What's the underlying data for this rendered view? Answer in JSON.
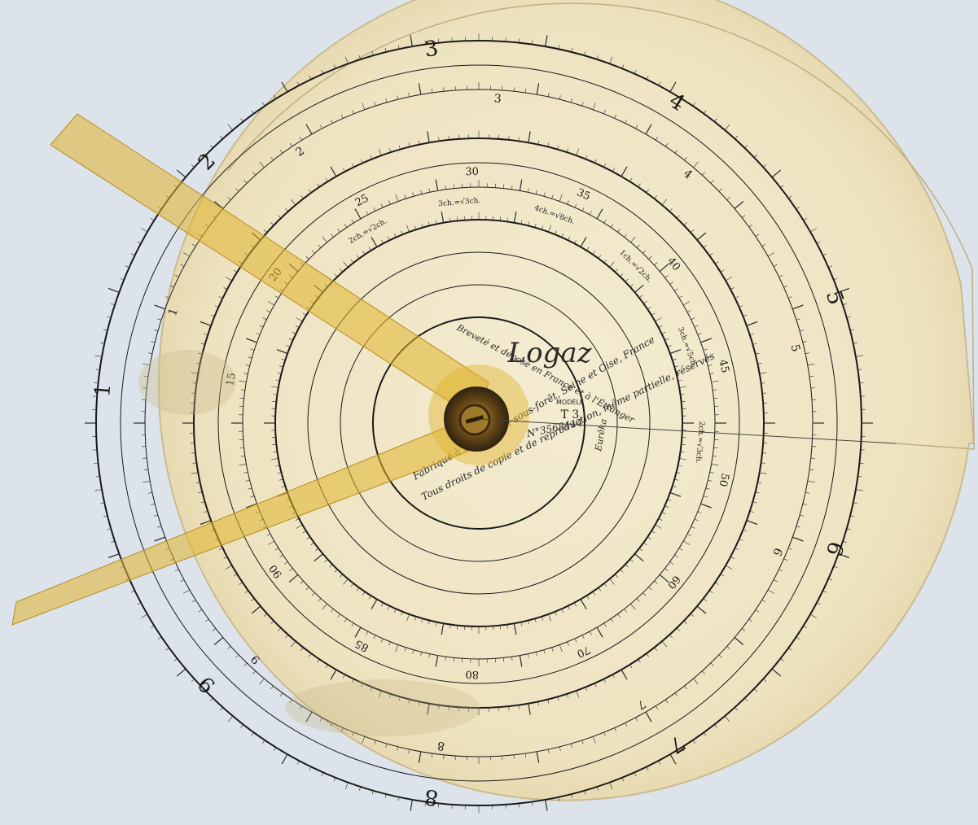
{
  "disc": {
    "brand": "Logaz",
    "model_label": "MODÈLE",
    "model": "T 3",
    "serial": "N°3568414",
    "patent_line_1": "Breveté et déposé en France et à l'Étranger",
    "patent_line_2": "Fabriqué à Saint-Brice-sous-forêt, Seine et Oise, France",
    "patent_line_3": "Tous droits de copie et de reproduction, même partielle, réservés",
    "signature": "Eurêka"
  },
  "scales": {
    "outer_major": [
      "1",
      "2",
      "3",
      "4",
      "5",
      "6",
      "7",
      "8",
      "9"
    ],
    "outer_minor": [
      "1",
      "2",
      "3",
      "4",
      "5",
      "6",
      "7",
      "8",
      "9"
    ],
    "inner_numbers": [
      "15",
      "20",
      "25",
      "30",
      "35",
      "40",
      "45",
      "50",
      "60",
      "70",
      "80",
      "85",
      "90"
    ],
    "root_labels": [
      "2ch.=√2ch.",
      "3ch.=√3ch.",
      "4ch.=√8ch.",
      "1ch.=√2ch.",
      "3ch.=√5ch.",
      "2ch.=√3ch."
    ]
  },
  "colors": {
    "background": "#dde3ea",
    "disc": "#efe6c7",
    "ink": "#1a1a1a",
    "cursor": "#e0b42c"
  }
}
